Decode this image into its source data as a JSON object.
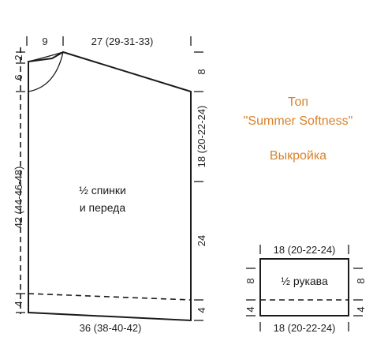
{
  "title": {
    "line1": "Топ",
    "line2": "\"Summer Softness\"",
    "line3": "Выкройка",
    "color": "#d9822b"
  },
  "body_piece": {
    "label_line1": "½ спинки",
    "label_line2": "и переда",
    "top_neck_width": "9",
    "top_shoulder_width": "27 (29-31-33)",
    "bottom_width": "36 (38-40-42)",
    "left_neck_depth_top": "2",
    "left_neck_depth_front": "6",
    "left_height": "42 (44-46-48)",
    "left_hem": "4",
    "right_shoulder_slope": "8",
    "right_armhole": "18 (20-22-24)",
    "right_side": "24",
    "right_hem": "4"
  },
  "sleeve_piece": {
    "label": "½ рукава",
    "top_width": "18 (20-22-24)",
    "bottom_width": "18 (20-22-24)",
    "left_height": "8",
    "left_hem": "4",
    "right_height": "8",
    "right_hem": "4"
  }
}
